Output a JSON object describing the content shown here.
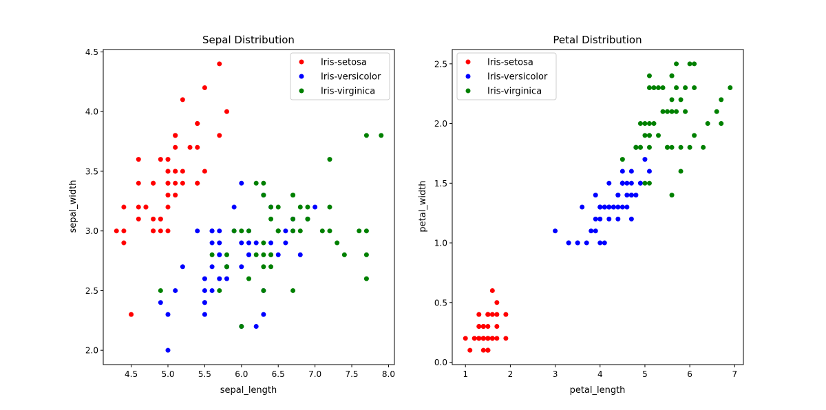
{
  "chart_data": [
    {
      "type": "scatter",
      "title": "Sepal Distribution",
      "xlabel": "sepal_length",
      "ylabel": "sepal_width",
      "xlim": [
        4.12,
        8.08
      ],
      "ylim": [
        1.88,
        4.52
      ],
      "xticks": [
        "4.5",
        "5.0",
        "5.5",
        "6.0",
        "6.5",
        "7.0",
        "7.5",
        "8.0"
      ],
      "yticks": [
        "2.0",
        "2.5",
        "3.0",
        "3.5",
        "4.0",
        "4.5"
      ],
      "legend": "upper right",
      "grid": false,
      "series": [
        {
          "name": "Iris-setosa",
          "color": "#ff0000",
          "x": [
            5.1,
            4.9,
            4.7,
            4.6,
            5.0,
            5.4,
            4.6,
            5.0,
            4.4,
            4.9,
            5.4,
            4.8,
            4.8,
            4.3,
            5.8,
            5.7,
            5.4,
            5.1,
            5.7,
            5.1,
            5.4,
            5.1,
            4.6,
            5.1,
            4.8,
            5.0,
            5.0,
            5.2,
            5.2,
            4.7,
            4.8,
            5.4,
            5.2,
            5.5,
            4.9,
            5.0,
            5.5,
            4.9,
            4.4,
            5.1,
            5.0,
            4.5,
            4.4,
            5.0,
            5.1,
            4.8,
            5.1,
            4.6,
            5.3,
            5.0
          ],
          "y": [
            3.5,
            3.0,
            3.2,
            3.1,
            3.6,
            3.9,
            3.4,
            3.4,
            2.9,
            3.1,
            3.7,
            3.4,
            3.0,
            3.0,
            4.0,
            4.4,
            3.9,
            3.5,
            3.8,
            3.8,
            3.4,
            3.7,
            3.6,
            3.3,
            3.4,
            3.0,
            3.4,
            3.5,
            3.4,
            3.2,
            3.1,
            3.4,
            4.1,
            4.2,
            3.1,
            3.2,
            3.5,
            3.6,
            3.0,
            3.4,
            3.5,
            2.3,
            3.2,
            3.5,
            3.8,
            3.0,
            3.8,
            3.2,
            3.7,
            3.3
          ]
        },
        {
          "name": "Iris-versicolor",
          "color": "#0000ff",
          "x": [
            7.0,
            6.4,
            6.9,
            5.5,
            6.5,
            5.7,
            6.3,
            4.9,
            6.6,
            5.2,
            5.0,
            5.9,
            6.0,
            6.1,
            5.6,
            6.7,
            5.6,
            5.8,
            6.2,
            5.6,
            5.9,
            6.1,
            6.3,
            6.1,
            6.4,
            6.6,
            6.8,
            6.7,
            6.0,
            5.7,
            5.5,
            5.5,
            5.8,
            6.0,
            5.4,
            6.0,
            6.7,
            6.3,
            5.6,
            5.5,
            5.5,
            6.1,
            5.8,
            5.0,
            5.6,
            5.7,
            5.7,
            6.2,
            5.1,
            5.7
          ],
          "y": [
            3.2,
            3.2,
            3.1,
            2.3,
            2.8,
            2.8,
            3.3,
            2.4,
            2.9,
            2.7,
            2.0,
            3.0,
            2.2,
            2.9,
            2.9,
            3.1,
            3.0,
            2.7,
            2.2,
            2.5,
            3.2,
            2.8,
            2.5,
            2.8,
            2.9,
            3.0,
            2.8,
            3.0,
            2.9,
            2.6,
            2.4,
            2.4,
            2.7,
            2.7,
            3.0,
            3.4,
            3.1,
            2.3,
            3.0,
            2.5,
            2.6,
            3.0,
            2.6,
            2.3,
            2.7,
            3.0,
            2.9,
            2.9,
            2.5,
            2.8
          ]
        },
        {
          "name": "Iris-virginica",
          "color": "#008000",
          "x": [
            6.3,
            5.8,
            7.1,
            6.3,
            6.5,
            7.6,
            4.9,
            7.3,
            6.7,
            7.2,
            6.5,
            6.4,
            6.8,
            5.7,
            5.8,
            6.4,
            6.5,
            7.7,
            7.7,
            6.0,
            6.9,
            5.6,
            7.7,
            6.3,
            6.7,
            7.2,
            6.2,
            6.1,
            6.4,
            7.2,
            7.4,
            7.9,
            6.4,
            6.3,
            6.1,
            7.7,
            6.3,
            6.4,
            6.0,
            6.9,
            6.7,
            6.9,
            5.8,
            6.8,
            6.7,
            6.7,
            6.3,
            6.5,
            6.2,
            5.9
          ],
          "y": [
            3.3,
            2.7,
            3.0,
            2.9,
            3.0,
            3.0,
            2.5,
            2.9,
            2.5,
            3.6,
            3.2,
            2.7,
            3.0,
            2.5,
            2.8,
            3.2,
            3.0,
            3.8,
            2.6,
            2.2,
            3.2,
            2.8,
            2.8,
            2.7,
            3.3,
            3.2,
            2.8,
            3.0,
            2.8,
            3.0,
            2.8,
            3.8,
            2.8,
            2.8,
            2.6,
            3.0,
            3.4,
            3.1,
            3.0,
            3.1,
            3.1,
            3.1,
            2.7,
            3.2,
            3.3,
            3.0,
            2.5,
            3.0,
            3.4,
            3.0
          ]
        }
      ]
    },
    {
      "type": "scatter",
      "title": "Petal Distribution",
      "xlabel": "petal_length",
      "ylabel": "petal_width",
      "xlim": [
        0.705,
        7.195
      ],
      "ylim": [
        -0.02,
        2.62
      ],
      "xticks": [
        "1",
        "2",
        "3",
        "4",
        "5",
        "6",
        "7"
      ],
      "yticks": [
        "0.0",
        "0.5",
        "1.0",
        "1.5",
        "2.0",
        "2.5"
      ],
      "legend": "upper left",
      "grid": false,
      "series": [
        {
          "name": "Iris-setosa",
          "color": "#ff0000",
          "x": [
            1.4,
            1.4,
            1.3,
            1.5,
            1.4,
            1.7,
            1.4,
            1.5,
            1.4,
            1.5,
            1.5,
            1.6,
            1.4,
            1.1,
            1.2,
            1.5,
            1.3,
            1.4,
            1.7,
            1.5,
            1.7,
            1.5,
            1.0,
            1.7,
            1.9,
            1.6,
            1.6,
            1.5,
            1.4,
            1.6,
            1.6,
            1.5,
            1.5,
            1.4,
            1.5,
            1.2,
            1.3,
            1.5,
            1.3,
            1.5,
            1.3,
            1.3,
            1.3,
            1.6,
            1.9,
            1.4,
            1.6,
            1.4,
            1.5,
            1.4
          ],
          "y": [
            0.2,
            0.2,
            0.2,
            0.2,
            0.2,
            0.4,
            0.3,
            0.2,
            0.2,
            0.1,
            0.2,
            0.2,
            0.1,
            0.1,
            0.2,
            0.4,
            0.4,
            0.3,
            0.3,
            0.3,
            0.2,
            0.4,
            0.2,
            0.5,
            0.2,
            0.2,
            0.4,
            0.2,
            0.2,
            0.2,
            0.2,
            0.4,
            0.1,
            0.2,
            0.1,
            0.2,
            0.2,
            0.1,
            0.2,
            0.2,
            0.3,
            0.3,
            0.2,
            0.6,
            0.4,
            0.3,
            0.2,
            0.2,
            0.2,
            0.2
          ]
        },
        {
          "name": "Iris-versicolor",
          "color": "#0000ff",
          "x": [
            4.7,
            4.5,
            4.9,
            4.0,
            4.6,
            4.5,
            4.7,
            3.3,
            4.6,
            3.9,
            3.5,
            4.2,
            4.0,
            4.7,
            3.6,
            4.4,
            4.5,
            4.1,
            4.5,
            3.9,
            4.8,
            4.0,
            4.9,
            4.7,
            4.3,
            4.4,
            4.8,
            5.0,
            4.5,
            3.5,
            3.8,
            3.7,
            3.9,
            5.1,
            4.5,
            4.5,
            4.7,
            4.4,
            4.1,
            4.0,
            4.4,
            4.6,
            4.0,
            3.3,
            4.2,
            4.2,
            4.2,
            4.3,
            3.0,
            4.1
          ],
          "y": [
            1.4,
            1.5,
            1.5,
            1.3,
            1.5,
            1.3,
            1.6,
            1.0,
            1.3,
            1.4,
            1.0,
            1.5,
            1.0,
            1.4,
            1.3,
            1.4,
            1.5,
            1.0,
            1.5,
            1.1,
            1.8,
            1.3,
            1.5,
            1.2,
            1.3,
            1.4,
            1.4,
            1.7,
            1.5,
            1.0,
            1.1,
            1.0,
            1.2,
            1.6,
            1.5,
            1.6,
            1.5,
            1.3,
            1.3,
            1.3,
            1.2,
            1.4,
            1.2,
            1.0,
            1.3,
            1.2,
            1.3,
            1.3,
            1.1,
            1.3
          ]
        },
        {
          "name": "Iris-virginica",
          "color": "#008000",
          "x": [
            6.0,
            5.1,
            5.9,
            5.6,
            5.8,
            6.6,
            4.5,
            6.3,
            5.8,
            6.1,
            5.1,
            5.3,
            5.5,
            5.0,
            5.1,
            5.3,
            5.5,
            6.7,
            6.9,
            5.0,
            5.7,
            4.9,
            6.7,
            4.9,
            5.7,
            6.0,
            4.8,
            4.9,
            5.6,
            5.8,
            6.1,
            6.4,
            5.6,
            5.1,
            5.6,
            6.1,
            5.6,
            5.5,
            4.8,
            5.4,
            5.6,
            5.1,
            5.1,
            5.9,
            5.7,
            5.2,
            5.0,
            5.2,
            5.4,
            5.1
          ],
          "y": [
            2.5,
            1.9,
            2.1,
            1.8,
            2.2,
            2.1,
            1.7,
            1.8,
            1.8,
            2.5,
            2.0,
            1.9,
            2.1,
            2.0,
            2.4,
            2.3,
            1.8,
            2.2,
            2.3,
            1.5,
            2.3,
            2.0,
            2.0,
            1.8,
            2.1,
            1.8,
            1.8,
            1.8,
            2.1,
            1.6,
            1.9,
            2.0,
            2.2,
            1.5,
            1.4,
            2.3,
            2.4,
            1.8,
            1.8,
            2.1,
            2.4,
            2.3,
            1.9,
            2.3,
            2.5,
            2.3,
            1.9,
            2.0,
            2.3,
            1.8
          ]
        }
      ]
    }
  ]
}
